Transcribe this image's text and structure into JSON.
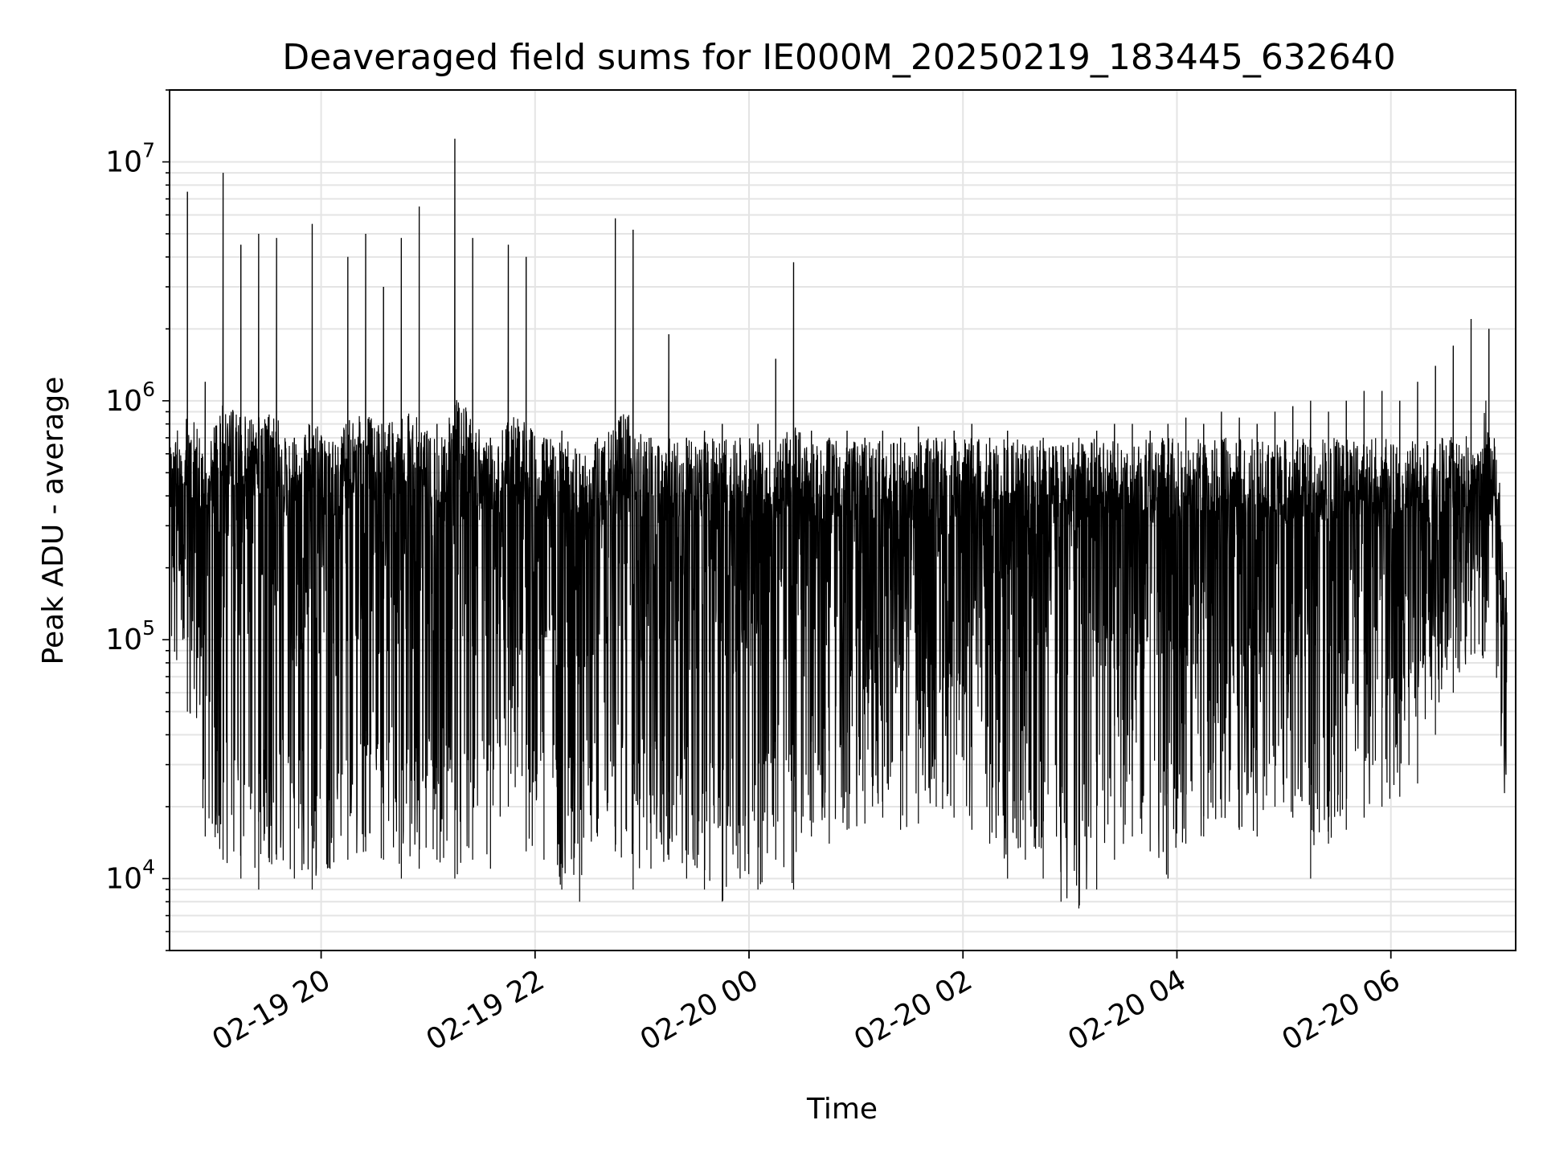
{
  "chart_data": {
    "type": "line",
    "title": "Deaveraged field sums for IE000M_20250219_183445_632640",
    "xlabel": "Time",
    "ylabel": "Peak ADU - average",
    "y_scale": "log",
    "x_range": [
      "02-19 18:35",
      "02-20 07:10"
    ],
    "ylim": [
      5000,
      20000000
    ],
    "x_ticks": [
      "02-19 20",
      "02-19 22",
      "02-20 00",
      "02-20 02",
      "02-20 04",
      "02-20 06"
    ],
    "y_ticks": [
      {
        "value": 10000,
        "base": "10",
        "exp": "4"
      },
      {
        "value": 100000,
        "base": "10",
        "exp": "5"
      },
      {
        "value": 1000000,
        "base": "10",
        "exp": "6"
      },
      {
        "value": 10000000,
        "base": "10",
        "exp": "7"
      }
    ],
    "grid": true,
    "line_color": "#000000",
    "series": [
      {
        "x": [
          "02-19 18:35",
          "02-19 18:45",
          "02-19 18:55",
          "02-19 19:05",
          "02-19 19:15",
          "02-19 19:25",
          "02-19 19:35",
          "02-19 19:45",
          "02-19 19:55",
          "02-19 20:05",
          "02-19 20:15",
          "02-19 20:25",
          "02-19 20:35",
          "02-19 20:45",
          "02-19 20:55",
          "02-19 21:05",
          "02-19 21:15",
          "02-19 21:25",
          "02-19 21:35",
          "02-19 21:45",
          "02-19 21:55",
          "02-19 22:05",
          "02-19 22:15",
          "02-19 22:25",
          "02-19 22:35",
          "02-19 22:45",
          "02-19 22:55",
          "02-19 23:05",
          "02-19 23:15",
          "02-19 23:25",
          "02-19 23:35",
          "02-19 23:45",
          "02-19 23:55",
          "02-20 00:05",
          "02-20 00:15",
          "02-20 00:25",
          "02-20 00:35",
          "02-20 00:45",
          "02-20 00:55",
          "02-20 01:05",
          "02-20 01:15",
          "02-20 01:25",
          "02-20 01:35",
          "02-20 01:45",
          "02-20 01:55",
          "02-20 02:05",
          "02-20 02:15",
          "02-20 02:25",
          "02-20 02:35",
          "02-20 02:45",
          "02-20 02:55",
          "02-20 03:05",
          "02-20 03:15",
          "02-20 03:25",
          "02-20 03:35",
          "02-20 03:45",
          "02-20 03:55",
          "02-20 04:05",
          "02-20 04:15",
          "02-20 04:25",
          "02-20 04:35",
          "02-20 04:45",
          "02-20 04:55",
          "02-20 05:05",
          "02-20 05:15",
          "02-20 05:25",
          "02-20 05:35",
          "02-20 05:45",
          "02-20 05:55",
          "02-20 06:05",
          "02-20 06:15",
          "02-20 06:25",
          "02-20 06:35",
          "02-20 06:45",
          "02-20 06:55",
          "02-20 07:05"
        ],
        "y": [
          900000,
          7500000,
          1200000,
          9000000,
          4500000,
          5000000,
          4800000,
          700000,
          5500000,
          600000,
          4000000,
          5000000,
          3000000,
          4800000,
          6500000,
          800000,
          12500000,
          4800000,
          700000,
          4500000,
          4000000,
          700000,
          750000,
          600000,
          700000,
          5800000,
          5200000,
          700000,
          1900000,
          700000,
          750000,
          800000,
          700000,
          800000,
          1500000,
          3800000,
          750000,
          700000,
          750000,
          700000,
          750000,
          700000,
          780000,
          700000,
          750000,
          800000,
          700000,
          750000,
          650000,
          700000,
          650000,
          700000,
          750000,
          800000,
          800000,
          750000,
          800000,
          850000,
          800000,
          900000,
          850000,
          800000,
          900000,
          950000,
          1000000,
          900000,
          1000000,
          1100000,
          1100000,
          1000000,
          1200000,
          1400000,
          1700000,
          2200000,
          2000000,
          130000
        ],
        "y_low": [
          200000,
          50000,
          15000,
          12000,
          10000,
          9000,
          12000,
          10000,
          9000,
          11000,
          12000,
          13000,
          12000,
          10000,
          11000,
          12000,
          10000,
          12000,
          11000,
          20000,
          13000,
          12000,
          9000,
          8000,
          15000,
          13000,
          9000,
          11000,
          12000,
          10000,
          9000,
          8000,
          10000,
          9000,
          12000,
          9000,
          15000,
          14000,
          16000,
          17000,
          18000,
          16000,
          17000,
          20000,
          18000,
          16000,
          14000,
          10000,
          12000,
          10000,
          8000,
          7500,
          9000,
          12000,
          15000,
          13000,
          10000,
          14000,
          15000,
          18000,
          16000,
          15000,
          20000,
          18000,
          10000,
          14000,
          16000,
          18000,
          20000,
          22000,
          25000,
          40000,
          60000,
          150000,
          300000,
          90000
        ]
      }
    ]
  }
}
